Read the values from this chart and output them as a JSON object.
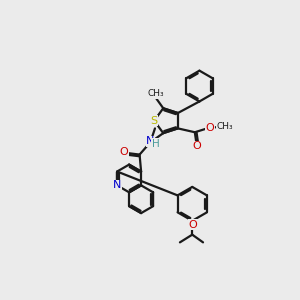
{
  "bg_color": "#ebebeb",
  "bond_color": "#1a1a1a",
  "S_color": "#b8b800",
  "N_color": "#0000cc",
  "O_color": "#cc0000",
  "H_color": "#4a9a9a",
  "lw": 1.6,
  "figsize": [
    3.0,
    3.0
  ],
  "dpi": 100,
  "xlim": [
    0,
    300
  ],
  "ylim": [
    0,
    300
  ]
}
